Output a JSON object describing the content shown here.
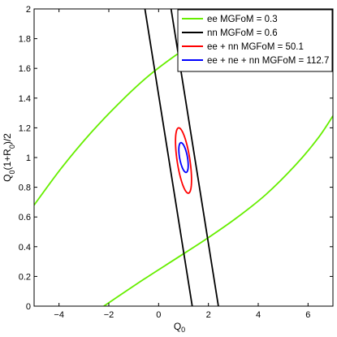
{
  "chart_data": {
    "type": "line",
    "title": "",
    "xlabel_main": "Q",
    "xlabel_sub": "0",
    "ylabel_parts": [
      {
        "t": "Q",
        "sub": false
      },
      {
        "t": "0",
        "sub": true
      },
      {
        "t": "(1+R",
        "sub": false
      },
      {
        "t": "0",
        "sub": true
      },
      {
        "t": ")/2",
        "sub": false
      }
    ],
    "xlim": [
      -5,
      7
    ],
    "ylim": [
      0,
      2
    ],
    "xticks": [
      -4,
      -2,
      0,
      2,
      4,
      6
    ],
    "xtick_labels": [
      "−4",
      "−2",
      "0",
      "2",
      "4",
      "6"
    ],
    "yticks": [
      0,
      0.2,
      0.4,
      0.6,
      0.8,
      1.0,
      1.2,
      1.4,
      1.6,
      1.8,
      2.0
    ],
    "ytick_labels": [
      "0",
      "0.2",
      "0.4",
      "0.6",
      "0.8",
      "1",
      "1.2",
      "1.4",
      "1.6",
      "1.8",
      "2"
    ],
    "grid": false,
    "legend_position": "top-right",
    "series": [
      {
        "name": "ee MGFoM = 0.3",
        "color": "#66ee00",
        "branches": [
          {
            "x": [
              -5.0,
              -3.9,
              -2.7,
              -1.5,
              -0.4,
              0.7,
              1.2
            ],
            "y": [
              0.68,
              0.93,
              1.17,
              1.38,
              1.55,
              1.69,
              1.74
            ]
          },
          {
            "x": [
              -2.2,
              -0.6,
              0.7,
              1.9,
              3.1,
              4.3,
              5.5,
              6.4,
              7.0
            ],
            "y": [
              0.0,
              0.18,
              0.32,
              0.45,
              0.59,
              0.75,
              0.95,
              1.13,
              1.28
            ]
          }
        ]
      },
      {
        "name": "nn MGFoM = 0.6",
        "color": "#000000",
        "branches": [
          {
            "x": [
              -0.55,
              1.35
            ],
            "y": [
              2.0,
              0.0
            ]
          },
          {
            "x": [
              0.5,
              2.4
            ],
            "y": [
              2.0,
              0.0
            ]
          }
        ]
      },
      {
        "name": "ee + nn MGFoM = 50.1",
        "color": "#ff0000",
        "ellipse": {
          "cx": 1.0,
          "cy": 0.98,
          "a": 0.26,
          "b": 0.22,
          "tilt_dx": -0.19
        }
      },
      {
        "name": "ee + ne + nn MGFoM = 112.7",
        "color": "#0000ff",
        "ellipse": {
          "cx": 1.0,
          "cy": 1.0,
          "a": 0.16,
          "b": 0.1,
          "tilt_dx": -0.1
        }
      }
    ]
  }
}
